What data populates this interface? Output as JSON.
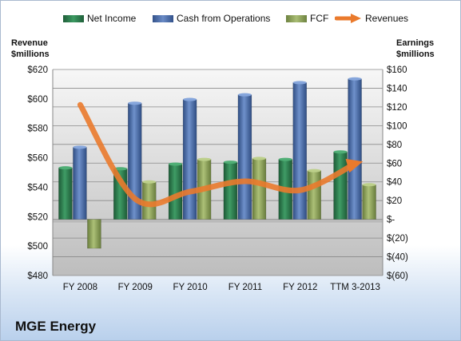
{
  "company": "MGE Energy",
  "chart_data": {
    "type": "bar",
    "categories": [
      "FY 2008",
      "FY 2009",
      "FY 2010",
      "FY 2011",
      "FY 2012",
      "TTM 3-2013"
    ],
    "series": [
      {
        "name": "Net Income",
        "axis": "right",
        "color": "#2a7a4c",
        "values": [
          55,
          54,
          59,
          61,
          64,
          72
        ]
      },
      {
        "name": "Cash from Operations",
        "axis": "right",
        "color": "#4a6ba8",
        "values": [
          77,
          124,
          128,
          133,
          146,
          150
        ]
      },
      {
        "name": "FCF",
        "axis": "right",
        "color": "#8ea25a",
        "values": [
          -31,
          40,
          64,
          65,
          52,
          37
        ]
      },
      {
        "name": "Revenues",
        "axis": "left",
        "type": "line",
        "color": "#ea7a2c",
        "values": [
          596,
          532,
          537,
          544,
          538,
          556
        ]
      }
    ],
    "ylabel_left": "Revenue\n$millions",
    "ylabel_right": "Earnings\n$millions",
    "ylim_left": [
      480,
      620
    ],
    "ylim_right": [
      -60,
      160
    ],
    "left_ticks": [
      "$480",
      "$500",
      "$520",
      "$540",
      "$560",
      "$580",
      "$600",
      "$620"
    ],
    "right_ticks": [
      "$(60)",
      "$(40)",
      "$(20)",
      "$-",
      "$20",
      "$40",
      "$60",
      "$80",
      "$100",
      "$120",
      "$140",
      "$160"
    ],
    "grid": true,
    "legend": "top"
  }
}
